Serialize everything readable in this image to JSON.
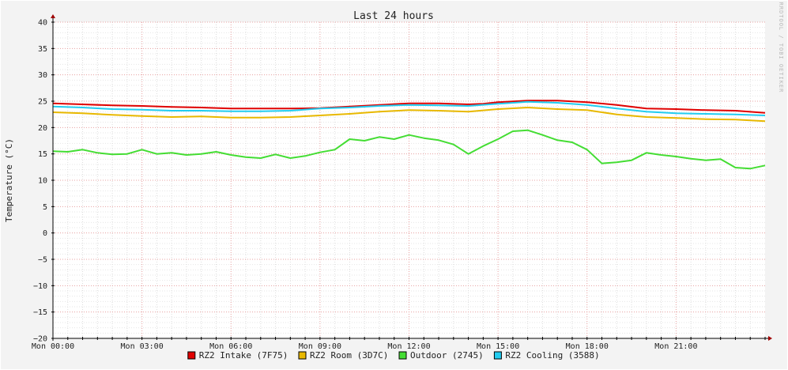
{
  "chart_data": {
    "type": "line",
    "title": "Last 24 hours",
    "ylabel": "Temperature (°C)",
    "xlabel": "",
    "watermark": "RRDTOOL / TOBI OETIKER",
    "ylim": [
      -20,
      40
    ],
    "y_ticks": [
      40,
      35,
      30,
      25,
      20,
      15,
      10,
      5,
      0,
      -5,
      -10,
      -15,
      -20
    ],
    "y_tick_labels": [
      "40",
      "35",
      "30",
      "25",
      "20",
      "15",
      "10",
      "5",
      "0",
      "−5",
      "−10",
      "−15",
      "−20"
    ],
    "x_range_hours": [
      0,
      24
    ],
    "x_ticks": [
      {
        "hour": 0,
        "label": "Mon 00:00"
      },
      {
        "hour": 3,
        "label": "Mon 03:00"
      },
      {
        "hour": 6,
        "label": "Mon 06:00"
      },
      {
        "hour": 9,
        "label": "Mon 09:00"
      },
      {
        "hour": 12,
        "label": "Mon 12:00"
      },
      {
        "hour": 15,
        "label": "Mon 15:00"
      },
      {
        "hour": 18,
        "label": "Mon 18:00"
      },
      {
        "hour": 21,
        "label": "Mon 21:00"
      }
    ],
    "grid": true,
    "legend_position": "bottom-center",
    "series": [
      {
        "name": "RZ2 Intake (7F75)",
        "color": "#e00000",
        "x": [
          0,
          1,
          2,
          3,
          4,
          5,
          6,
          7,
          8,
          9,
          10,
          11,
          12,
          13,
          14,
          14.5,
          15,
          16,
          17,
          18,
          19,
          20,
          21,
          22,
          23,
          24
        ],
        "values": [
          24.6,
          24.4,
          24.2,
          24.1,
          23.9,
          23.8,
          23.6,
          23.6,
          23.6,
          23.7,
          24.0,
          24.3,
          24.6,
          24.6,
          24.4,
          24.5,
          24.8,
          25.1,
          25.1,
          24.8,
          24.3,
          23.6,
          23.5,
          23.3,
          23.2,
          22.8
        ]
      },
      {
        "name": "RZ2 Room (3D7C)",
        "color": "#e8b800",
        "x": [
          0,
          1,
          2,
          3,
          4,
          5,
          6,
          7,
          8,
          9,
          10,
          11,
          12,
          13,
          14,
          15,
          16,
          17,
          18,
          19,
          20,
          21,
          22,
          23,
          24
        ],
        "values": [
          22.9,
          22.7,
          22.4,
          22.2,
          22.0,
          22.1,
          21.9,
          21.9,
          22.0,
          22.3,
          22.6,
          23.0,
          23.3,
          23.2,
          23.0,
          23.5,
          23.8,
          23.5,
          23.3,
          22.5,
          22.0,
          21.8,
          21.6,
          21.5,
          21.2
        ]
      },
      {
        "name": "Outdoor (2745)",
        "color": "#44dd33",
        "x": [
          0,
          0.5,
          1,
          1.5,
          2,
          2.5,
          3,
          3.5,
          4,
          4.5,
          5,
          5.5,
          6,
          6.5,
          7,
          7.5,
          8,
          8.5,
          9,
          9.5,
          10,
          10.5,
          11,
          11.5,
          12,
          12.5,
          13,
          13.5,
          14,
          14.5,
          15,
          15.5,
          16,
          16.5,
          17,
          17.5,
          18,
          18.5,
          19,
          19.5,
          20,
          20.5,
          21,
          21.5,
          22,
          22.5,
          23,
          23.5,
          24
        ],
        "values": [
          15.5,
          15.4,
          15.8,
          15.2,
          14.9,
          15.0,
          15.8,
          15.0,
          15.2,
          14.8,
          15.0,
          15.4,
          14.8,
          14.4,
          14.2,
          14.9,
          14.2,
          14.6,
          15.3,
          15.8,
          17.8,
          17.5,
          18.2,
          17.8,
          18.6,
          18.0,
          17.6,
          16.8,
          15.0,
          16.5,
          17.8,
          19.3,
          19.5,
          18.6,
          17.6,
          17.2,
          15.8,
          13.2,
          13.4,
          13.8,
          15.2,
          14.8,
          14.5,
          14.1,
          13.8,
          14.0,
          12.4,
          12.2,
          12.8
        ]
      },
      {
        "name": "RZ2 Cooling (3588)",
        "color": "#22ccf0",
        "x": [
          0,
          1,
          2,
          3,
          4,
          5,
          6,
          7,
          8,
          9,
          10,
          11,
          12,
          13,
          14,
          15,
          16,
          17,
          18,
          19,
          20,
          21,
          22,
          23,
          24
        ],
        "values": [
          24.0,
          23.8,
          23.5,
          23.4,
          23.2,
          23.2,
          23.1,
          23.1,
          23.2,
          23.6,
          23.8,
          24.1,
          24.3,
          24.2,
          24.1,
          24.5,
          24.9,
          24.7,
          24.3,
          23.6,
          23.0,
          22.7,
          22.6,
          22.5,
          22.3
        ]
      }
    ]
  }
}
